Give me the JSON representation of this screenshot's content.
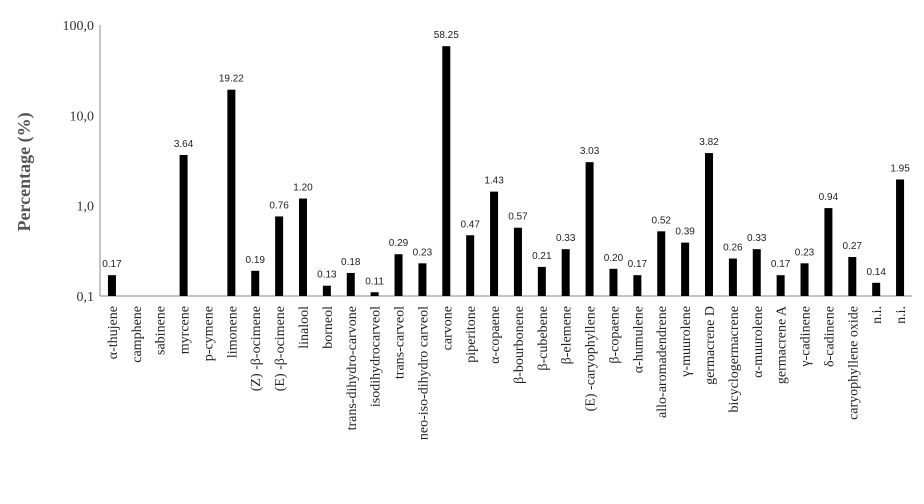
{
  "chart_data": {
    "type": "bar",
    "title": "",
    "xlabel": "",
    "ylabel": "Percentage (%)",
    "yscale": "log",
    "ylim": [
      0.1,
      100
    ],
    "yticks": [
      "0,1",
      "1,0",
      "10,0",
      "100,0"
    ],
    "grid": false,
    "bar_color": "#000000",
    "categories": [
      "α-thujene",
      "camphene",
      "sabinene",
      "myrcene",
      "p-cymene",
      "limonene",
      "(Z) -β-ocimene",
      "(E) -β-ocimene",
      "linalool",
      "borneol",
      "trans-dihydro-carvone",
      "isodihydrocarveol",
      "trans-carveol",
      "neo-iso-dihydro carveol",
      "carvone",
      "piperitone",
      "α-copaene",
      "β-bourbonene",
      "β-cubebene",
      "β-elemene",
      "(E) -caryophyllene",
      "β-copaene",
      "α-humulene",
      "allo-aromadendrene",
      "γ-muurolene",
      "germacrene D",
      "bicyclogermacrene",
      "α-muurolene",
      "germacrene A",
      "γ-cadinene",
      "δ-cadinene",
      "caryophyllene oxide",
      "n.i.",
      "n.i."
    ],
    "values": [
      0.17,
      null,
      null,
      3.64,
      null,
      19.22,
      0.19,
      0.76,
      1.2,
      0.13,
      0.18,
      0.11,
      0.29,
      0.23,
      58.25,
      0.47,
      1.43,
      0.57,
      0.21,
      0.33,
      3.03,
      0.2,
      0.17,
      0.52,
      0.39,
      3.82,
      0.26,
      0.33,
      0.17,
      0.23,
      0.94,
      0.27,
      0.14,
      1.95
    ],
    "value_labels": [
      "0.17",
      "",
      "",
      "3.64",
      "",
      "19.22",
      "0.19",
      "0.76",
      "1.20",
      "0.13",
      "0.18",
      "0.11",
      "0.29",
      "0.23",
      "58.25",
      "0.47",
      "1.43",
      "0.57",
      "0.21",
      "0.33",
      "3.03",
      "0.20",
      "0.17",
      "0.52",
      "0.39",
      "3.82",
      "0.26",
      "0.33",
      "0.17",
      "0.23",
      "0.94",
      "0.27",
      "0.14",
      "1.95"
    ]
  }
}
